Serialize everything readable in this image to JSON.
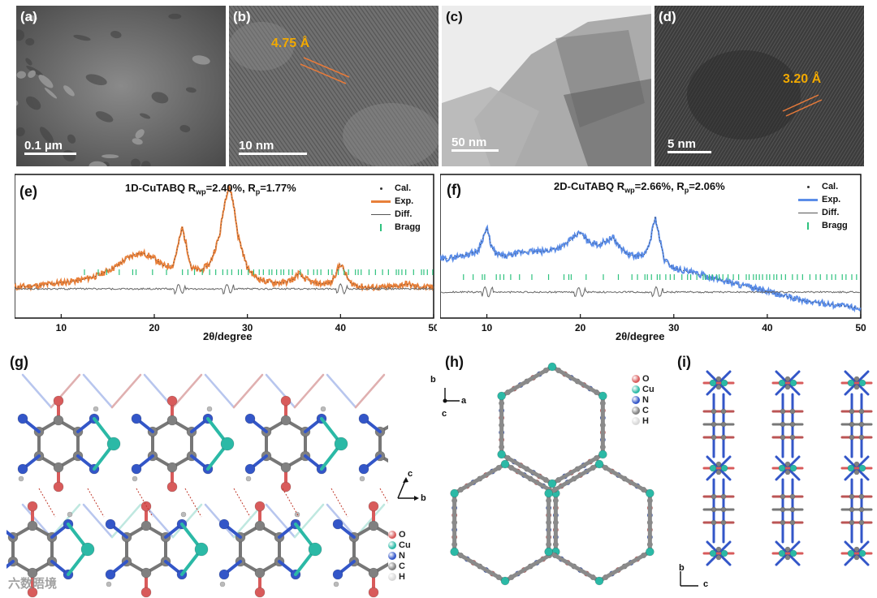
{
  "panels": {
    "a": {
      "label": "(a)",
      "scalebar": "0.1 µm"
    },
    "b": {
      "label": "(b)",
      "scalebar": "10 nm",
      "dspacing": "4.75 Å"
    },
    "c": {
      "label": "(c)",
      "scalebar": "50 nm"
    },
    "d": {
      "label": "(d)",
      "scalebar": "5 nm",
      "dspacing": "3.20 Å"
    },
    "g": {
      "label": "(g)"
    },
    "h": {
      "label": "(h)"
    },
    "i": {
      "label": "(i)"
    }
  },
  "xrd_e": {
    "label": "(e)",
    "title": "1D-CuTABQ  R",
    "rwp_sub": "wp",
    "rwp_val": "=2.40%, R",
    "rp_sub": "p",
    "rp_val": "=1.77%",
    "xlabel": "2θ/degree",
    "legend": [
      "Cal.",
      "Exp.",
      "Diff.",
      "Bragg"
    ],
    "exp_color": "#e8803a"
  },
  "xrd_f": {
    "label": "(f)",
    "title": "2D-CuTABQ  R",
    "rwp_sub": "wp",
    "rwp_val": "=2.66%, R",
    "rp_sub": "p",
    "rp_val": "=2.06%",
    "xlabel": "2θ/degree",
    "legend": [
      "Cal.",
      "Exp.",
      "Diff.",
      "Bragg"
    ],
    "exp_color": "#5b8de8"
  },
  "chart_data": [
    {
      "type": "line",
      "title": "1D-CuTABQ Rwp=2.40%, Rp=1.77%",
      "xlabel": "2θ/degree",
      "xlim": [
        5,
        50
      ],
      "xticks": [
        "10",
        "20",
        "30",
        "40",
        "50"
      ],
      "series": [
        {
          "name": "Exp.",
          "x": [
            5,
            8,
            10,
            12,
            14,
            16,
            17,
            18,
            19,
            20,
            21,
            22,
            22.5,
            23,
            23.5,
            24,
            25,
            26,
            27,
            27.5,
            28,
            28.5,
            29,
            30,
            31,
            32,
            33,
            34,
            35,
            35.5,
            36,
            37,
            38,
            39,
            39.5,
            40,
            40.5,
            41,
            42,
            43,
            44,
            45,
            46,
            47,
            48,
            49,
            50
          ],
          "y": [
            0.12,
            0.14,
            0.16,
            0.18,
            0.22,
            0.3,
            0.36,
            0.4,
            0.4,
            0.36,
            0.3,
            0.3,
            0.45,
            0.62,
            0.45,
            0.28,
            0.26,
            0.32,
            0.55,
            0.8,
            0.98,
            0.82,
            0.55,
            0.28,
            0.2,
            0.17,
            0.16,
            0.16,
            0.19,
            0.24,
            0.2,
            0.16,
            0.15,
            0.16,
            0.24,
            0.32,
            0.24,
            0.16,
            0.13,
            0.12,
            0.12,
            0.12,
            0.13,
            0.15,
            0.13,
            0.12,
            0.12
          ]
        },
        {
          "name": "Diff."
        },
        {
          "name": "Bragg"
        },
        {
          "name": "Cal."
        }
      ]
    },
    {
      "type": "line",
      "title": "2D-CuTABQ Rwp=2.66%, Rp=2.06%",
      "xlabel": "2θ/degree",
      "xlim": [
        5,
        50
      ],
      "xticks": [
        "10",
        "20",
        "30",
        "40",
        "50"
      ],
      "series": [
        {
          "name": "Exp.",
          "x": [
            5,
            7,
            8,
            9,
            9.5,
            10,
            10.5,
            11,
            12,
            13,
            14,
            15,
            16,
            17,
            18,
            19,
            19.5,
            20,
            20.5,
            21,
            22,
            23,
            23.5,
            24,
            25,
            26,
            27,
            27.5,
            28,
            28.5,
            29,
            30,
            31,
            32,
            34,
            36,
            38,
            40,
            42,
            44,
            46,
            48,
            50
          ],
          "y": [
            0.55,
            0.58,
            0.6,
            0.62,
            0.72,
            0.82,
            0.66,
            0.6,
            0.58,
            0.6,
            0.62,
            0.62,
            0.62,
            0.64,
            0.66,
            0.72,
            0.76,
            0.78,
            0.74,
            0.7,
            0.68,
            0.72,
            0.74,
            0.68,
            0.6,
            0.58,
            0.6,
            0.72,
            0.92,
            0.72,
            0.55,
            0.48,
            0.46,
            0.44,
            0.4,
            0.36,
            0.32,
            0.28,
            0.24,
            0.2,
            0.18,
            0.16,
            0.14
          ]
        },
        {
          "name": "Diff."
        },
        {
          "name": "Bragg"
        },
        {
          "name": "Cal."
        }
      ]
    }
  ],
  "elements": [
    {
      "symbol": "O",
      "color": "#d85b5b"
    },
    {
      "symbol": "Cu",
      "color": "#2bb9a6"
    },
    {
      "symbol": "N",
      "color": "#3356c8"
    },
    {
      "symbol": "C",
      "color": "#808080"
    },
    {
      "symbol": "H",
      "color": "#d8d8d8"
    }
  ],
  "axes_h": {
    "b": "b",
    "a": "a",
    "c": "c"
  },
  "axes_g": {
    "c": "c",
    "b": "b"
  },
  "axes_i": {
    "b": "b",
    "c": "c"
  },
  "watermark": "六数晤境"
}
